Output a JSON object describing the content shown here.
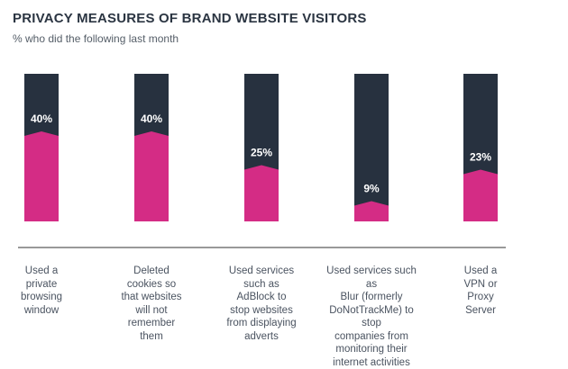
{
  "header": {
    "title": "PRIVACY MEASURES OF BRAND WEBSITE VISITORS",
    "subtitle": "% who did the following last month"
  },
  "colors": {
    "background_bar": "#27313f",
    "value_bar": "#d42c85",
    "label_text": "#ffffff",
    "baseline": "#999999"
  },
  "chart_data": {
    "type": "bar",
    "title": "PRIVACY MEASURES OF BRAND WEBSITE VISITORS",
    "subtitle": "% who did the following last month",
    "categories": [
      [
        "Used a",
        "private",
        "browsing",
        "window"
      ],
      [
        "Deleted",
        "cookies so",
        "that websites",
        "will not",
        "remember",
        "them"
      ],
      [
        "Used services",
        "such as",
        "AdBlock to",
        "stop websites",
        "from displaying",
        "adverts"
      ],
      [
        "Used services such as",
        "Blur (formerly",
        "DoNotTrackMe) to stop",
        "companies from",
        "monitoring their",
        "internet activities"
      ],
      [
        "Used a",
        "VPN or",
        "Proxy",
        "Server"
      ]
    ],
    "values": [
      40,
      40,
      25,
      9,
      23
    ],
    "value_labels": [
      "40%",
      "40%",
      "25%",
      "9%",
      "23%"
    ],
    "ylim": [
      0,
      100
    ],
    "grid": false
  }
}
